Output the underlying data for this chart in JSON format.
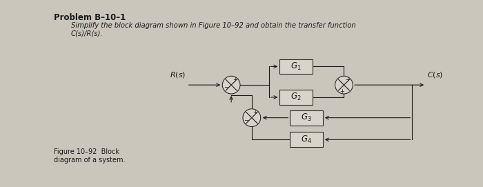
{
  "title": "Problem B–10–1",
  "subtitle": "Simplify the block diagram shown in Figure 10–92 and obtain the transfer function",
  "subtitle2": "C(s)/R(s).",
  "fig_caption": "Figure 10–92  Block\ndiagram of a system.",
  "bg_color": "#cac6bc",
  "text_color": "#1a1a1a",
  "box_facecolor": "#d8d4ca",
  "box_edgecolor": "#2a2a2a",
  "line_color": "#1a1a1a",
  "input_label": "R(s)",
  "output_label": "C(s)",
  "g_labels": [
    "G_1",
    "G_2",
    "G_3",
    "G_4"
  ]
}
